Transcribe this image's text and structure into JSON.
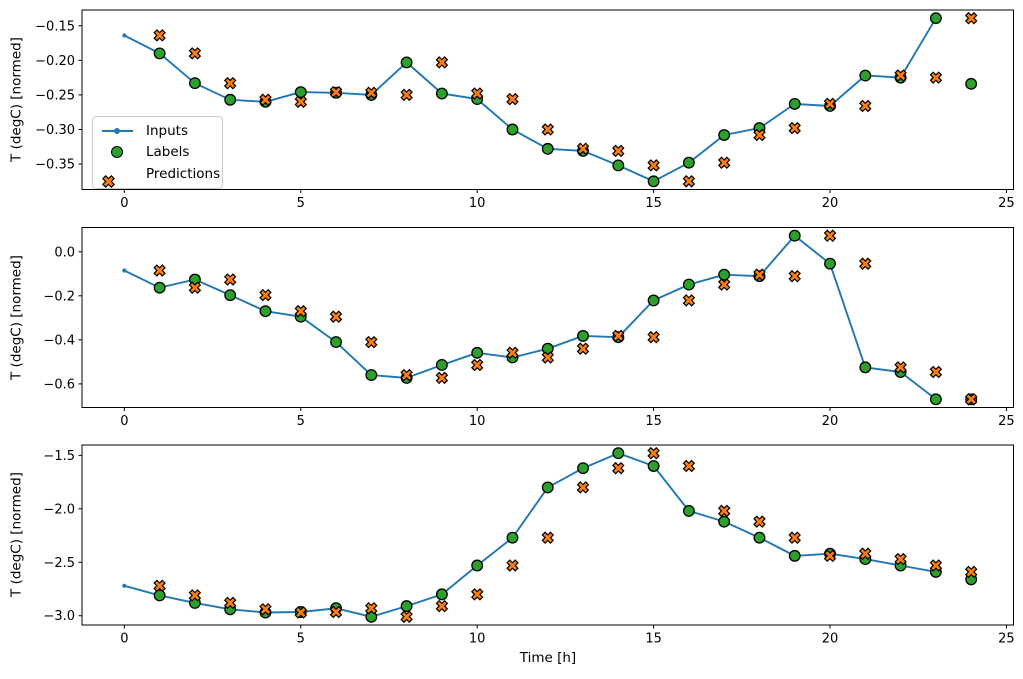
{
  "xlabel": "Time [h]",
  "colors": {
    "inputs": "#1f77b4",
    "labels": "#2ca02c",
    "predictions": "#ff7f0e",
    "marker_edge": "#000000",
    "spine": "#000000",
    "legend_border": "#cccccc"
  },
  "legend": {
    "position": "upper-left area of first subplot",
    "items": [
      {
        "label": "Inputs",
        "marker": "line-dot"
      },
      {
        "label": "Labels",
        "marker": "circle"
      },
      {
        "label": "Predictions",
        "marker": "x"
      }
    ]
  },
  "chart_data": [
    {
      "type": "line",
      "title": "",
      "xlabel": "",
      "ylabel": "T (degC) [normed]",
      "grid": false,
      "xlim": [
        -1.2,
        25.2
      ],
      "ylim": [
        -0.3868,
        -0.1272
      ],
      "xticks": [
        0,
        5,
        10,
        15,
        20,
        25
      ],
      "yticks": [
        -0.15,
        -0.2,
        -0.25,
        -0.3,
        -0.35
      ],
      "ytick_labels": [
        "−0.15",
        "−0.20",
        "−0.25",
        "−0.30",
        "−0.35"
      ],
      "series": [
        {
          "name": "Inputs",
          "marker": "line-dot",
          "x": [
            0,
            1,
            2,
            3,
            4,
            5,
            6,
            7,
            8,
            9,
            10,
            11,
            12,
            13,
            14,
            15,
            16,
            17,
            18,
            19,
            20,
            21,
            22,
            23
          ],
          "values": [
            -0.164,
            -0.19,
            -0.233,
            -0.257,
            -0.26,
            -0.246,
            -0.247,
            -0.25,
            -0.203,
            -0.248,
            -0.256,
            -0.3,
            -0.328,
            -0.331,
            -0.352,
            -0.375,
            -0.348,
            -0.308,
            -0.298,
            -0.263,
            -0.266,
            -0.222,
            -0.225,
            -0.139
          ]
        },
        {
          "name": "Labels",
          "marker": "circle",
          "x": [
            1,
            2,
            3,
            4,
            5,
            6,
            7,
            8,
            9,
            10,
            11,
            12,
            13,
            14,
            15,
            16,
            17,
            18,
            19,
            20,
            21,
            22,
            23,
            24
          ],
          "values": [
            -0.19,
            -0.233,
            -0.257,
            -0.26,
            -0.246,
            -0.247,
            -0.25,
            -0.203,
            -0.248,
            -0.256,
            -0.3,
            -0.328,
            -0.331,
            -0.352,
            -0.375,
            -0.348,
            -0.308,
            -0.298,
            -0.263,
            -0.266,
            -0.222,
            -0.225,
            -0.139,
            -0.234
          ]
        },
        {
          "name": "Predictions",
          "marker": "X",
          "x": [
            1,
            2,
            3,
            4,
            5,
            6,
            7,
            8,
            9,
            10,
            11,
            12,
            13,
            14,
            15,
            16,
            17,
            18,
            19,
            20,
            21,
            22,
            23,
            24
          ],
          "values": [
            -0.164,
            -0.19,
            -0.233,
            -0.257,
            -0.26,
            -0.246,
            -0.247,
            -0.25,
            -0.203,
            -0.248,
            -0.256,
            -0.3,
            -0.328,
            -0.331,
            -0.352,
            -0.375,
            -0.348,
            -0.308,
            -0.298,
            -0.263,
            -0.266,
            -0.222,
            -0.225,
            -0.139
          ]
        }
      ]
    },
    {
      "type": "line",
      "title": "",
      "xlabel": "",
      "ylabel": "T (degC) [normed]",
      "grid": false,
      "xlim": [
        -1.2,
        25.2
      ],
      "ylim": [
        -0.7072,
        0.1102
      ],
      "xticks": [
        0,
        5,
        10,
        15,
        20,
        25
      ],
      "yticks": [
        0.0,
        -0.2,
        -0.4,
        -0.6
      ],
      "ytick_labels": [
        "0.0",
        "−0.2",
        "−0.4",
        "−0.6"
      ],
      "series": [
        {
          "name": "Inputs",
          "marker": "line-dot",
          "x": [
            0,
            1,
            2,
            3,
            4,
            5,
            6,
            7,
            8,
            9,
            10,
            11,
            12,
            13,
            14,
            15,
            16,
            17,
            18,
            19,
            20,
            21,
            22,
            23
          ],
          "values": [
            -0.085,
            -0.163,
            -0.126,
            -0.197,
            -0.27,
            -0.295,
            -0.41,
            -0.56,
            -0.573,
            -0.514,
            -0.459,
            -0.48,
            -0.44,
            -0.382,
            -0.388,
            -0.221,
            -0.149,
            -0.104,
            -0.111,
            0.073,
            -0.054,
            -0.525,
            -0.546,
            -0.67
          ]
        },
        {
          "name": "Labels",
          "marker": "circle",
          "x": [
            1,
            2,
            3,
            4,
            5,
            6,
            7,
            8,
            9,
            10,
            11,
            12,
            13,
            14,
            15,
            16,
            17,
            18,
            19,
            20,
            21,
            22,
            23,
            24
          ],
          "values": [
            -0.163,
            -0.126,
            -0.197,
            -0.27,
            -0.295,
            -0.41,
            -0.56,
            -0.573,
            -0.514,
            -0.459,
            -0.48,
            -0.44,
            -0.382,
            -0.388,
            -0.221,
            -0.149,
            -0.104,
            -0.111,
            0.073,
            -0.054,
            -0.525,
            -0.546,
            -0.67,
            -0.67
          ]
        },
        {
          "name": "Predictions",
          "marker": "X",
          "x": [
            1,
            2,
            3,
            4,
            5,
            6,
            7,
            8,
            9,
            10,
            11,
            12,
            13,
            14,
            15,
            16,
            17,
            18,
            19,
            20,
            21,
            22,
            23,
            24
          ],
          "values": [
            -0.085,
            -0.163,
            -0.126,
            -0.197,
            -0.27,
            -0.295,
            -0.41,
            -0.56,
            -0.573,
            -0.514,
            -0.459,
            -0.48,
            -0.44,
            -0.382,
            -0.388,
            -0.221,
            -0.149,
            -0.104,
            -0.111,
            0.073,
            -0.054,
            -0.525,
            -0.546,
            -0.67
          ]
        }
      ]
    },
    {
      "type": "line",
      "title": "",
      "xlabel": "Time [h]",
      "ylabel": "T (degC) [normed]",
      "grid": false,
      "xlim": [
        -1.2,
        25.2
      ],
      "ylim": [
        -3.0865,
        -1.4035
      ],
      "xticks": [
        0,
        5,
        10,
        15,
        20,
        25
      ],
      "yticks": [
        -1.5,
        -2.0,
        -2.5,
        -3.0
      ],
      "ytick_labels": [
        "−1.5",
        "−2.0",
        "−2.5",
        "−3.0"
      ],
      "series": [
        {
          "name": "Inputs",
          "marker": "line-dot",
          "x": [
            0,
            1,
            2,
            3,
            4,
            5,
            6,
            7,
            8,
            9,
            10,
            11,
            12,
            13,
            14,
            15,
            16,
            17,
            18,
            19,
            20,
            21,
            22,
            23
          ],
          "values": [
            -2.72,
            -2.81,
            -2.88,
            -2.94,
            -2.97,
            -2.965,
            -2.93,
            -3.01,
            -2.91,
            -2.8,
            -2.53,
            -2.27,
            -1.8,
            -1.62,
            -1.48,
            -1.6,
            -2.02,
            -2.12,
            -2.27,
            -2.44,
            -2.42,
            -2.47,
            -2.53,
            -2.59
          ]
        },
        {
          "name": "Labels",
          "marker": "circle",
          "x": [
            1,
            2,
            3,
            4,
            5,
            6,
            7,
            8,
            9,
            10,
            11,
            12,
            13,
            14,
            15,
            16,
            17,
            18,
            19,
            20,
            21,
            22,
            23,
            24
          ],
          "values": [
            -2.81,
            -2.88,
            -2.94,
            -2.97,
            -2.965,
            -2.93,
            -3.01,
            -2.91,
            -2.8,
            -2.53,
            -2.27,
            -1.8,
            -1.62,
            -1.48,
            -1.6,
            -2.02,
            -2.12,
            -2.27,
            -2.44,
            -2.42,
            -2.47,
            -2.53,
            -2.59,
            -2.66
          ]
        },
        {
          "name": "Predictions",
          "marker": "X",
          "x": [
            1,
            2,
            3,
            4,
            5,
            6,
            7,
            8,
            9,
            10,
            11,
            12,
            13,
            14,
            15,
            16,
            17,
            18,
            19,
            20,
            21,
            22,
            23,
            24
          ],
          "values": [
            -2.72,
            -2.81,
            -2.88,
            -2.94,
            -2.97,
            -2.965,
            -2.93,
            -3.01,
            -2.91,
            -2.8,
            -2.53,
            -2.27,
            -1.8,
            -1.62,
            -1.48,
            -1.6,
            -2.02,
            -2.12,
            -2.27,
            -2.44,
            -2.42,
            -2.47,
            -2.53,
            -2.59
          ]
        }
      ]
    }
  ]
}
